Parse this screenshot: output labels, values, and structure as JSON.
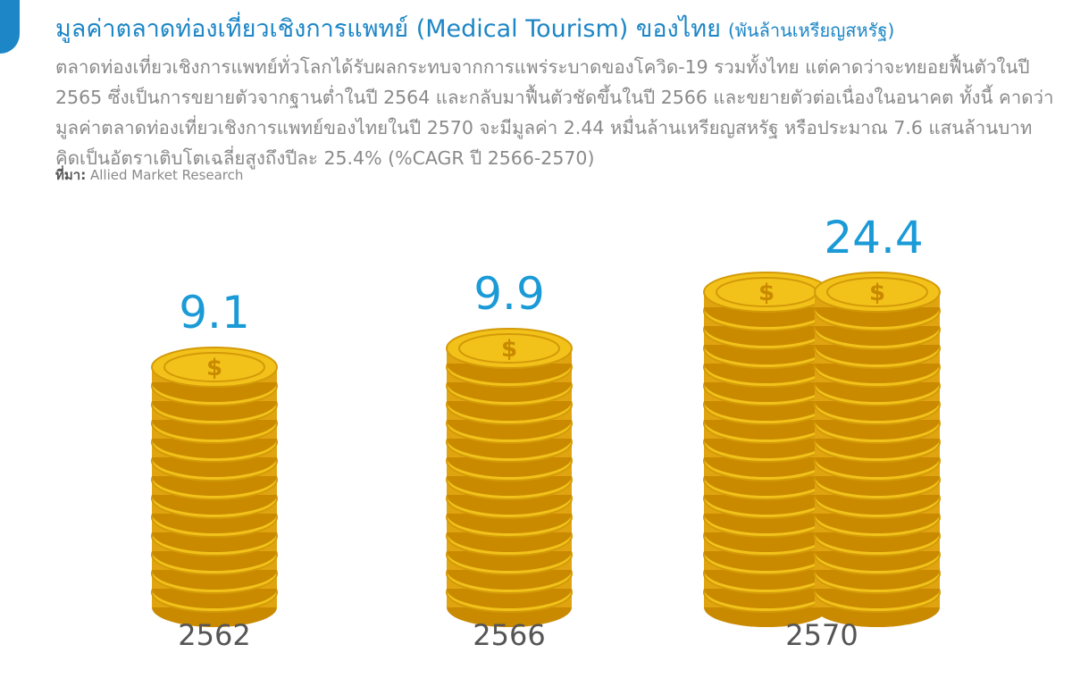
{
  "chart_data": {
    "type": "pictograph",
    "title": "มูลค่าตลาดท่องเที่ยวเชิงการแพทย์ (Medical Tourism) ของไทย",
    "subtitle": "(พันล้านเหรียญสหรัฐ)",
    "description": "ตลาดท่องเที่ยวเชิงการแพทย์ทั่วโลกได้รับผลกระทบจากการแพร่ระบาดของโควิด-19 รวมทั้งไทย แต่คาดว่าจะทยอยฟื้นตัวในปี 2565 ซึ่งเป็นการขยายตัวจากฐานต่ำในปี 2564 และกลับมาฟื้นตัวชัดขึ้นในปี 2566 และขยายตัวต่อเนื่องในอนาคต ทั้งนี้ คาดว่ามูลค่าตลาดท่องเที่ยวเชิงการแพทย์ของไทยในปี 2570 จะมีมูลค่า 2.44 หมื่นล้านเหรียญสหรัฐ หรือประมาณ 7.6 แสนล้านบาท คิดเป็นอัตราเติบโตเฉลี่ยสูงถึงปีละ 25.4% (%CAGR ปี 2566-2570)",
    "source_label": "ที่มา:",
    "source": "Allied Market Research",
    "categories": [
      "2562",
      "2566",
      "2570"
    ],
    "values": [
      9.1,
      9.9,
      24.4
    ],
    "color": "#f2c21a",
    "label_color": "#1a9ad6"
  }
}
